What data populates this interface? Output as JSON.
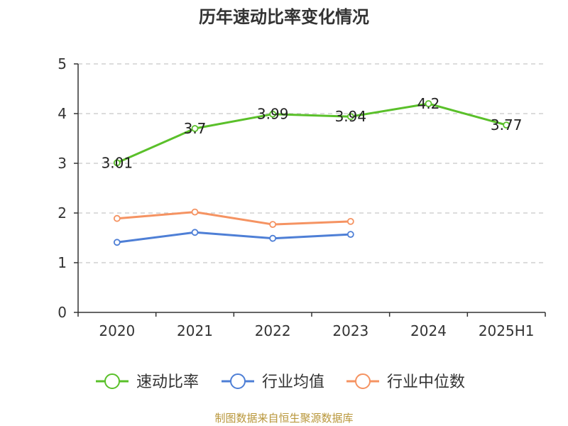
{
  "chart_data": {
    "type": "line",
    "title": "历年速动比率变化情况",
    "categories": [
      "2020",
      "2021",
      "2022",
      "2023",
      "2024",
      "2025H1"
    ],
    "ylim": [
      0,
      5
    ],
    "yticks": [
      "0",
      "1",
      "2",
      "3",
      "4",
      "5"
    ],
    "grid": true,
    "legend_position": "bottom",
    "series": [
      {
        "name": "速动比率",
        "color": "#5ac02a",
        "values": [
          3.01,
          3.7,
          3.99,
          3.94,
          4.2,
          3.77
        ],
        "labels": [
          "3.01",
          "3.7",
          "3.99",
          "3.94",
          "4.2",
          "3.77"
        ]
      },
      {
        "name": "行业均值",
        "color": "#4e7fd6",
        "values": [
          1.41,
          1.61,
          1.49,
          1.57,
          null,
          null
        ]
      },
      {
        "name": "行业中位数",
        "color": "#f59362",
        "values": [
          1.89,
          2.02,
          1.77,
          1.83,
          null,
          null
        ]
      }
    ],
    "source": "制图数据来自恒生聚源数据库",
    "source_color": "#b8963a"
  }
}
